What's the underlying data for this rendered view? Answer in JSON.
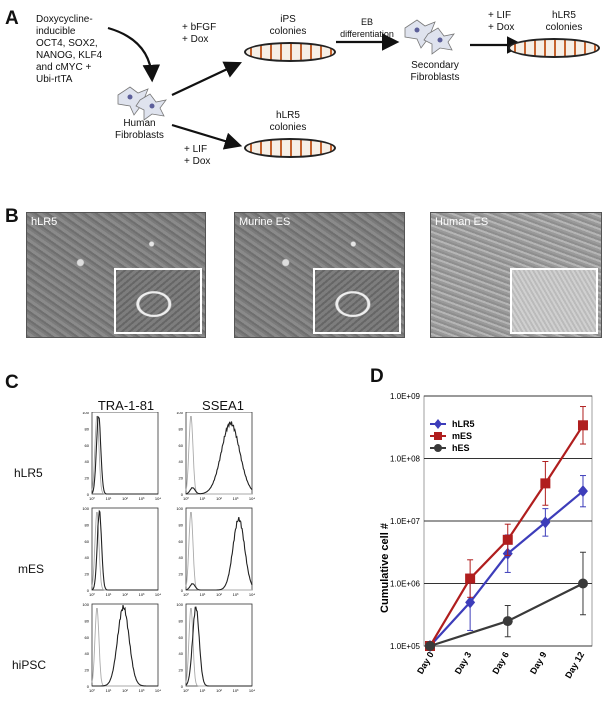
{
  "panels": {
    "a": "A",
    "b": "B",
    "c": "C",
    "d": "D"
  },
  "panelA": {
    "start_text": "Doxycycline-\ninducible\nOCT4, SOX2,\nNANOG, KLF4\nand cMYC +\nUbi-rtTA",
    "fibroblasts": "Human\nFibroblasts",
    "cond_top": "+ bFGF\n+ Dox",
    "ips": "iPS\ncolonies",
    "eb": "EB\ndifferentiation",
    "secondary": "Secondary\nFibroblasts",
    "cond_lif1": "+ LIF\n+ Dox",
    "hlr5_top": "hLR5\ncolonies",
    "hlr5_bottom": "hLR5\ncolonies",
    "cond_lif2": "+ LIF\n+ Dox"
  },
  "panelB": {
    "images": [
      "hLR5",
      "Murine ES",
      "Human ES"
    ]
  },
  "panelC": {
    "columns": [
      "TRA-1-81",
      "SSEA1"
    ],
    "rows": [
      "hLR5",
      "mES",
      "hiPSC"
    ],
    "y_ticks": [
      "0",
      "20",
      "40",
      "60",
      "80",
      "100"
    ],
    "x_ticks": [
      "10⁰",
      "10¹",
      "10²",
      "10³",
      "10⁴"
    ]
  },
  "chart_data": {
    "type": "line",
    "ylabel": "Cumulative cell #",
    "yscale": "log",
    "ylim": [
      100000,
      1000000000
    ],
    "y_tick_labels": [
      "1.0E+05",
      "1.0E+06",
      "1.0E+07",
      "1.0E+08",
      "1.0E+09"
    ],
    "categories": [
      "Day 0",
      "Day 3",
      "Day 6",
      "Day 9",
      "Day 12"
    ],
    "x": [
      0,
      3,
      6,
      9,
      12
    ],
    "grid": "horizontal",
    "legend": "top-left",
    "series": [
      {
        "name": "hLR5",
        "color": "#3d3dba",
        "marker": "diamond",
        "x": [
          0,
          3.2,
          6.2,
          9.2,
          12.2
        ],
        "values": [
          100000,
          500000,
          3000000,
          9500000,
          30000000
        ]
      },
      {
        "name": "mES",
        "color": "#b01e1e",
        "marker": "square",
        "x": [
          0,
          3.2,
          6.2,
          9.2,
          12.2
        ],
        "values": [
          100000,
          1200000,
          5000000,
          40000000,
          340000000
        ]
      },
      {
        "name": "hES",
        "color": "#3a3a3a",
        "marker": "circle",
        "x": [
          0,
          6.2,
          12.2
        ],
        "values": [
          100000,
          250000,
          1000000
        ]
      }
    ]
  }
}
